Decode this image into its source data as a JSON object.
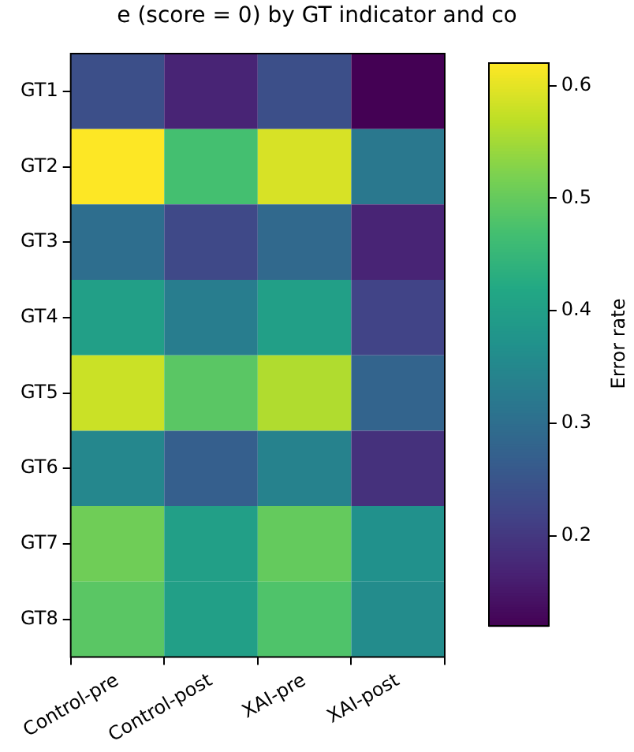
{
  "chart_data": {
    "type": "heatmap",
    "title": "e (score = 0) by GT indicator and co",
    "categories": [
      "Control-pre",
      "Control-post",
      "XAI-pre",
      "XAI-post"
    ],
    "y_categories": [
      "GT1",
      "GT2",
      "GT3",
      "GT4",
      "GT5",
      "GT6",
      "GT7",
      "GT8"
    ],
    "cells": [
      [
        0.24,
        0.17,
        0.24,
        0.12
      ],
      [
        0.62,
        0.47,
        0.59,
        0.32
      ],
      [
        0.3,
        0.23,
        0.29,
        0.17
      ],
      [
        0.4,
        0.33,
        0.4,
        0.22
      ],
      [
        0.58,
        0.49,
        0.56,
        0.28
      ],
      [
        0.35,
        0.27,
        0.34,
        0.19
      ],
      [
        0.51,
        0.4,
        0.5,
        0.37
      ],
      [
        0.49,
        0.4,
        0.48,
        0.36
      ]
    ],
    "clabel": "Error rate",
    "clim": [
      0.12,
      0.62
    ],
    "cticks": [
      0.2,
      0.3,
      0.4,
      0.5,
      0.6
    ]
  }
}
